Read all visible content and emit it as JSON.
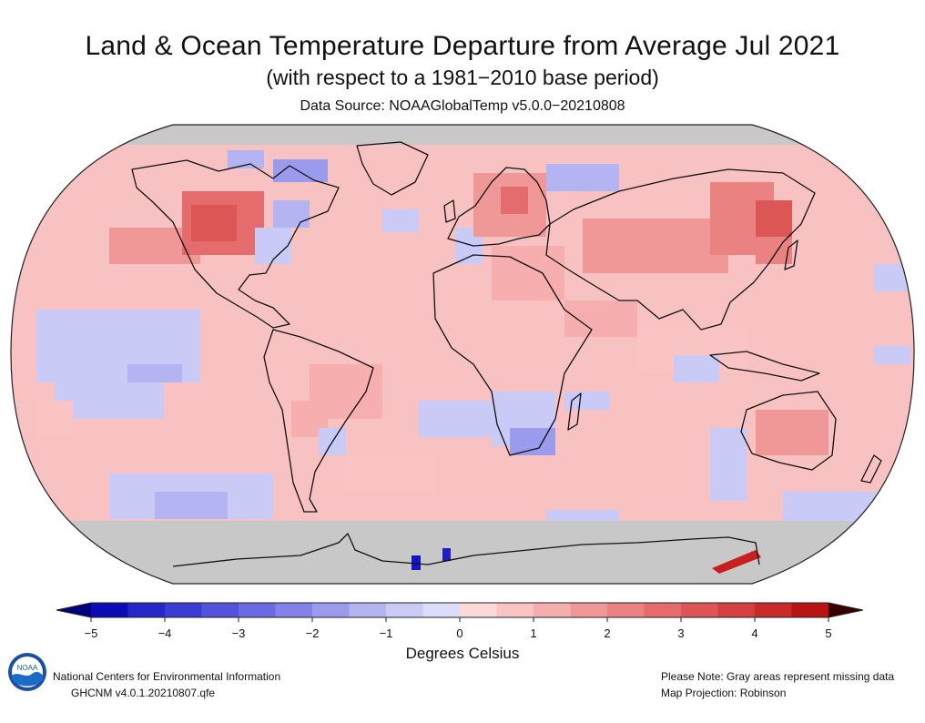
{
  "title": "Land & Ocean Temperature Departure from Average Jul 2021",
  "subtitle": "(with respect to a 1981−2010 base period)",
  "data_source": "Data Source: NOAAGlobalTemp v5.0.0−20210808",
  "colorbar": {
    "label": "Degrees Celsius",
    "ticks": [
      "−5",
      "−4",
      "−3",
      "−2",
      "−1",
      "0",
      "1",
      "2",
      "3",
      "4",
      "5"
    ],
    "tick_values": [
      -5,
      -4,
      -3,
      -2,
      -1,
      0,
      1,
      2,
      3,
      4,
      5
    ],
    "colors_negative": [
      "#0b0bb8",
      "#2626c8",
      "#3c3cd4",
      "#5252dc",
      "#6a6ae2",
      "#8282e8",
      "#9b9bee",
      "#b4b4f3",
      "#cacaf7",
      "#dcdcfb"
    ],
    "colors_positive": [
      "#ffd8d8",
      "#fbc4c4",
      "#f6aeae",
      "#f09898",
      "#ea8282",
      "#e46c6c",
      "#dc5656",
      "#d44040",
      "#c82a2a",
      "#b81414"
    ],
    "end_low": "#00007a",
    "end_high": "#3a0000"
  },
  "map": {
    "projection": "Map Projection: Robinson",
    "missing_color": "#c8c8c8",
    "ocean_base_color": "#f8c2c2"
  },
  "footer": {
    "org": "National Centers for Environmental Information",
    "version": "GHCNM v4.0.1.20210807.qfe",
    "note": "Please Note: Gray areas represent missing data",
    "projection": "Map Projection: Robinson"
  },
  "logo": {
    "text": "NOAA",
    "icon": "noaa-logo"
  }
}
